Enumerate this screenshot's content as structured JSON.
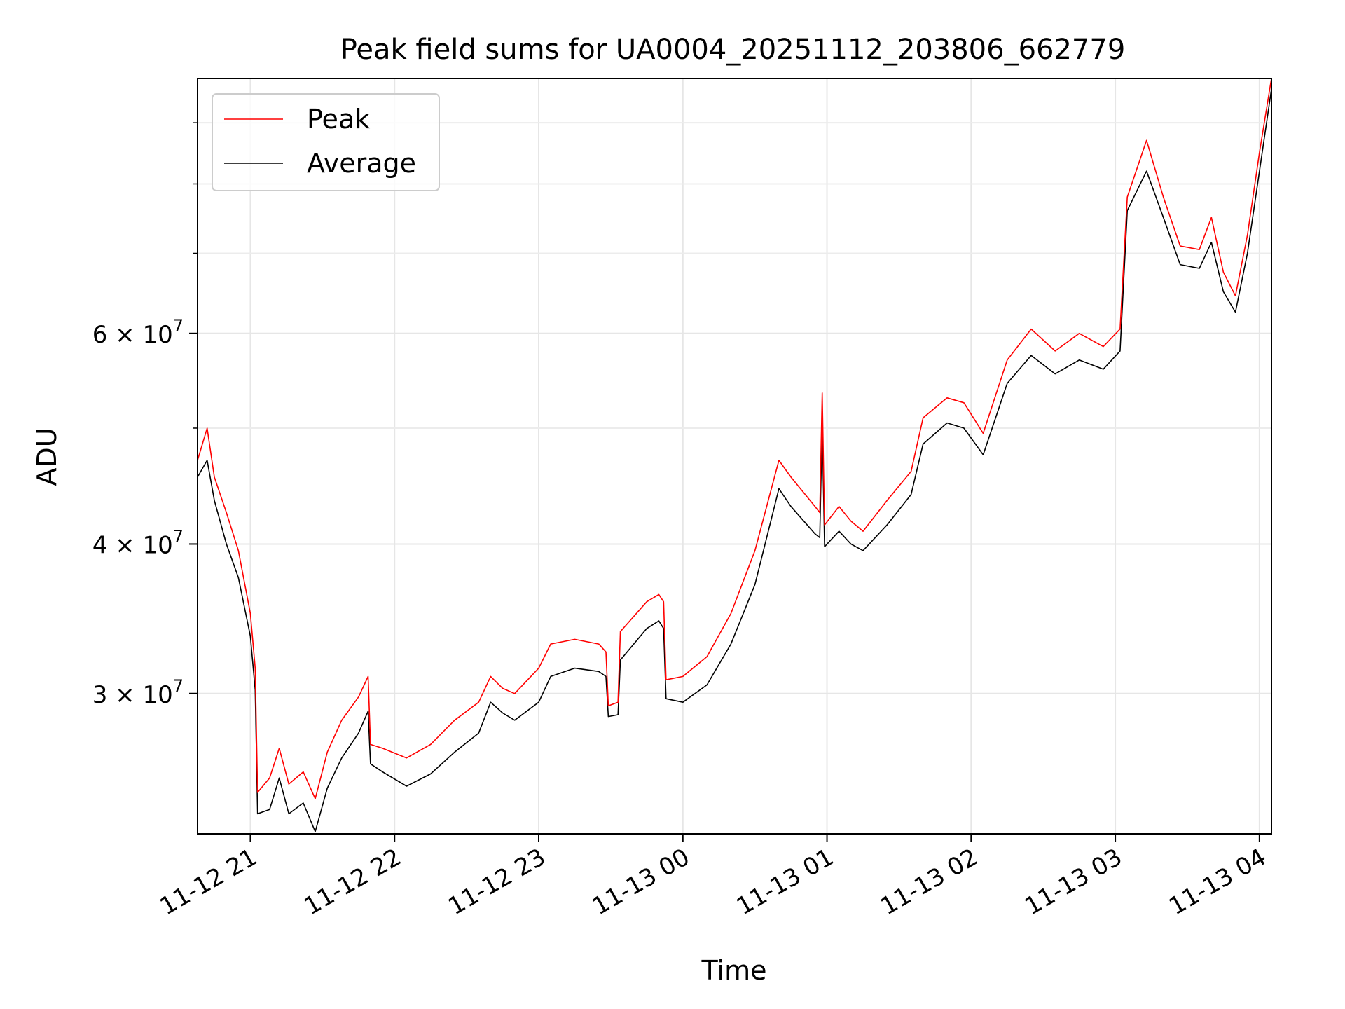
{
  "chart_data": {
    "type": "line",
    "title": "Peak field sums for UA0004_20251112_203806_662779",
    "xlabel": "Time",
    "ylabel": "ADU",
    "x_range": [
      "2025-11-12 20:38",
      "2025-11-13 04:05"
    ],
    "x_ticks": [
      {
        "t": "2025-11-12 21:00",
        "label": "11-12 21"
      },
      {
        "t": "2025-11-12 22:00",
        "label": "11-12 22"
      },
      {
        "t": "2025-11-12 23:00",
        "label": "11-12 23"
      },
      {
        "t": "2025-11-13 00:00",
        "label": "11-13 00"
      },
      {
        "t": "2025-11-13 01:00",
        "label": "11-13 01"
      },
      {
        "t": "2025-11-13 02:00",
        "label": "11-13 02"
      },
      {
        "t": "2025-11-13 03:00",
        "label": "11-13 03"
      },
      {
        "t": "2025-11-13 04:00",
        "label": "11-13 04"
      }
    ],
    "y_scale": "log",
    "y_range": [
      22900000,
      98000000
    ],
    "y_ticks": [
      {
        "value": 30000000,
        "mantissa": "3",
        "exponent": "7"
      },
      {
        "value": 40000000,
        "mantissa": "4",
        "exponent": "7"
      },
      {
        "value": 60000000,
        "mantissa": "6",
        "exponent": "7"
      }
    ],
    "y_minor_ticks": [
      50000000,
      70000000,
      80000000,
      90000000
    ],
    "grid": true,
    "legend_position": "top-left",
    "series": [
      {
        "name": "Average",
        "color": "#000000",
        "points": [
          [
            "2025-11-12 20:38",
            45500000
          ],
          [
            "2025-11-12 20:42",
            47000000
          ],
          [
            "2025-11-12 20:45",
            43500000
          ],
          [
            "2025-11-12 20:50",
            40000000
          ],
          [
            "2025-11-12 20:55",
            37500000
          ],
          [
            "2025-11-12 21:00",
            33500000
          ],
          [
            "2025-11-12 21:02",
            30200000
          ],
          [
            "2025-11-12 21:03",
            23800000
          ],
          [
            "2025-11-12 21:08",
            24000000
          ],
          [
            "2025-11-12 21:12",
            25500000
          ],
          [
            "2025-11-12 21:16",
            23800000
          ],
          [
            "2025-11-12 21:22",
            24300000
          ],
          [
            "2025-11-12 21:27",
            23000000
          ],
          [
            "2025-11-12 21:32",
            25000000
          ],
          [
            "2025-11-12 21:38",
            26500000
          ],
          [
            "2025-11-12 21:45",
            27800000
          ],
          [
            "2025-11-12 21:49",
            29000000
          ],
          [
            "2025-11-12 21:50",
            26200000
          ],
          [
            "2025-11-12 21:55",
            25800000
          ],
          [
            "2025-11-12 22:05",
            25100000
          ],
          [
            "2025-11-12 22:15",
            25700000
          ],
          [
            "2025-11-12 22:25",
            26800000
          ],
          [
            "2025-11-12 22:35",
            27800000
          ],
          [
            "2025-11-12 22:40",
            29500000
          ],
          [
            "2025-11-12 22:45",
            28900000
          ],
          [
            "2025-11-12 22:50",
            28500000
          ],
          [
            "2025-11-12 23:00",
            29500000
          ],
          [
            "2025-11-12 23:05",
            31000000
          ],
          [
            "2025-11-12 23:15",
            31500000
          ],
          [
            "2025-11-12 23:25",
            31300000
          ],
          [
            "2025-11-12 23:28",
            31000000
          ],
          [
            "2025-11-12 23:29",
            28700000
          ],
          [
            "2025-11-12 23:33",
            28800000
          ],
          [
            "2025-11-12 23:34",
            32000000
          ],
          [
            "2025-11-12 23:45",
            34000000
          ],
          [
            "2025-11-12 23:50",
            34500000
          ],
          [
            "2025-11-12 23:52",
            34000000
          ],
          [
            "2025-11-12 23:53",
            29700000
          ],
          [
            "2025-11-13 00:00",
            29500000
          ],
          [
            "2025-11-13 00:10",
            30500000
          ],
          [
            "2025-11-13 00:20",
            33000000
          ],
          [
            "2025-11-13 00:30",
            37000000
          ],
          [
            "2025-11-13 00:40",
            44500000
          ],
          [
            "2025-11-13 00:45",
            43000000
          ],
          [
            "2025-11-13 00:55",
            40800000
          ],
          [
            "2025-11-13 00:57",
            40500000
          ],
          [
            "2025-11-13 00:58",
            50500000
          ],
          [
            "2025-11-13 00:59",
            39800000
          ],
          [
            "2025-11-13 01:05",
            41000000
          ],
          [
            "2025-11-13 01:10",
            40000000
          ],
          [
            "2025-11-13 01:15",
            39500000
          ],
          [
            "2025-11-13 01:25",
            41500000
          ],
          [
            "2025-11-13 01:35",
            44000000
          ],
          [
            "2025-11-13 01:40",
            48500000
          ],
          [
            "2025-11-13 01:50",
            50500000
          ],
          [
            "2025-11-13 01:57",
            50000000
          ],
          [
            "2025-11-13 02:05",
            47500000
          ],
          [
            "2025-11-13 02:15",
            54500000
          ],
          [
            "2025-11-13 02:25",
            57500000
          ],
          [
            "2025-11-13 02:35",
            55500000
          ],
          [
            "2025-11-13 02:45",
            57000000
          ],
          [
            "2025-11-13 02:55",
            56000000
          ],
          [
            "2025-11-13 03:02",
            58000000
          ],
          [
            "2025-11-13 03:05",
            76000000
          ],
          [
            "2025-11-13 03:13",
            82000000
          ],
          [
            "2025-11-13 03:20",
            75000000
          ],
          [
            "2025-11-13 03:27",
            68500000
          ],
          [
            "2025-11-13 03:35",
            68000000
          ],
          [
            "2025-11-13 03:40",
            71500000
          ],
          [
            "2025-11-13 03:45",
            65000000
          ],
          [
            "2025-11-13 03:50",
            62500000
          ],
          [
            "2025-11-13 03:55",
            70000000
          ],
          [
            "2025-11-13 04:00",
            82000000
          ],
          [
            "2025-11-13 04:05",
            96000000
          ]
        ]
      },
      {
        "name": "Peak",
        "color": "#ff0000",
        "points": [
          [
            "2025-11-12 20:38",
            47000000
          ],
          [
            "2025-11-12 20:42",
            50000000
          ],
          [
            "2025-11-12 20:45",
            45500000
          ],
          [
            "2025-11-12 20:50",
            42500000
          ],
          [
            "2025-11-12 20:55",
            39500000
          ],
          [
            "2025-11-12 21:00",
            35000000
          ],
          [
            "2025-11-12 21:02",
            31500000
          ],
          [
            "2025-11-12 21:03",
            24800000
          ],
          [
            "2025-11-12 21:08",
            25500000
          ],
          [
            "2025-11-12 21:12",
            27000000
          ],
          [
            "2025-11-12 21:16",
            25200000
          ],
          [
            "2025-11-12 21:22",
            25800000
          ],
          [
            "2025-11-12 21:27",
            24500000
          ],
          [
            "2025-11-12 21:32",
            26800000
          ],
          [
            "2025-11-12 21:38",
            28500000
          ],
          [
            "2025-11-12 21:45",
            29800000
          ],
          [
            "2025-11-12 21:49",
            31000000
          ],
          [
            "2025-11-12 21:50",
            27200000
          ],
          [
            "2025-11-12 21:55",
            27000000
          ],
          [
            "2025-11-12 22:05",
            26500000
          ],
          [
            "2025-11-12 22:15",
            27200000
          ],
          [
            "2025-11-12 22:25",
            28500000
          ],
          [
            "2025-11-12 22:35",
            29500000
          ],
          [
            "2025-11-12 22:40",
            31000000
          ],
          [
            "2025-11-12 22:45",
            30300000
          ],
          [
            "2025-11-12 22:50",
            30000000
          ],
          [
            "2025-11-12 23:00",
            31500000
          ],
          [
            "2025-11-12 23:05",
            33000000
          ],
          [
            "2025-11-12 23:15",
            33300000
          ],
          [
            "2025-11-12 23:25",
            33000000
          ],
          [
            "2025-11-12 23:28",
            32500000
          ],
          [
            "2025-11-12 23:29",
            29300000
          ],
          [
            "2025-11-12 23:33",
            29500000
          ],
          [
            "2025-11-12 23:34",
            33800000
          ],
          [
            "2025-11-12 23:45",
            35800000
          ],
          [
            "2025-11-12 23:50",
            36300000
          ],
          [
            "2025-11-12 23:52",
            35800000
          ],
          [
            "2025-11-12 23:53",
            30800000
          ],
          [
            "2025-11-13 00:00",
            31000000
          ],
          [
            "2025-11-13 00:10",
            32200000
          ],
          [
            "2025-11-13 00:20",
            35000000
          ],
          [
            "2025-11-13 00:30",
            39500000
          ],
          [
            "2025-11-13 00:40",
            47000000
          ],
          [
            "2025-11-13 00:45",
            45500000
          ],
          [
            "2025-11-13 00:55",
            43000000
          ],
          [
            "2025-11-13 00:57",
            42500000
          ],
          [
            "2025-11-13 00:58",
            53500000
          ],
          [
            "2025-11-13 00:59",
            41500000
          ],
          [
            "2025-11-13 01:05",
            43000000
          ],
          [
            "2025-11-13 01:10",
            41800000
          ],
          [
            "2025-11-13 01:15",
            41000000
          ],
          [
            "2025-11-13 01:25",
            43500000
          ],
          [
            "2025-11-13 01:35",
            46000000
          ],
          [
            "2025-11-13 01:40",
            51000000
          ],
          [
            "2025-11-13 01:50",
            53000000
          ],
          [
            "2025-11-13 01:57",
            52500000
          ],
          [
            "2025-11-13 02:05",
            49500000
          ],
          [
            "2025-11-13 02:15",
            57000000
          ],
          [
            "2025-11-13 02:25",
            60500000
          ],
          [
            "2025-11-13 02:35",
            58000000
          ],
          [
            "2025-11-13 02:45",
            60000000
          ],
          [
            "2025-11-13 02:55",
            58500000
          ],
          [
            "2025-11-13 03:02",
            60500000
          ],
          [
            "2025-11-13 03:05",
            78000000
          ],
          [
            "2025-11-13 03:13",
            87000000
          ],
          [
            "2025-11-13 03:20",
            78000000
          ],
          [
            "2025-11-13 03:27",
            71000000
          ],
          [
            "2025-11-13 03:35",
            70500000
          ],
          [
            "2025-11-13 03:40",
            75000000
          ],
          [
            "2025-11-13 03:45",
            67500000
          ],
          [
            "2025-11-13 03:50",
            64500000
          ],
          [
            "2025-11-13 03:55",
            72500000
          ],
          [
            "2025-11-13 04:00",
            85000000
          ],
          [
            "2025-11-13 04:05",
            98000000
          ]
        ]
      }
    ],
    "legend": [
      {
        "name": "Peak",
        "color": "#ff0000"
      },
      {
        "name": "Average",
        "color": "#000000"
      }
    ]
  }
}
